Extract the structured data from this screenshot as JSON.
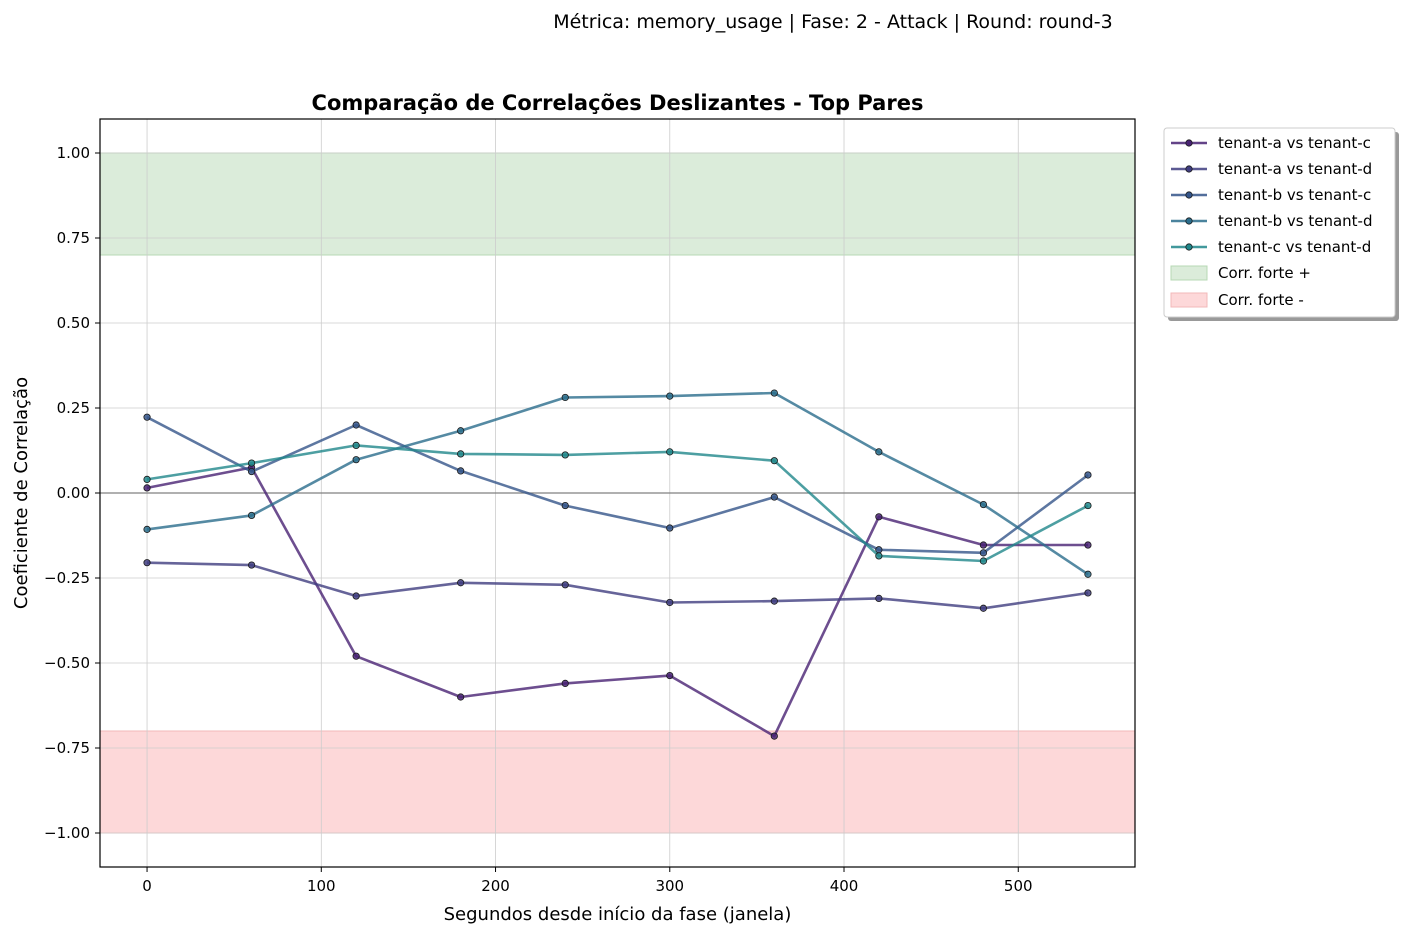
{
  "figure": {
    "suptitle": "Métrica: memory_usage | Fase: 2 - Attack | Round: round-3"
  },
  "chart_data": {
    "type": "line",
    "title": "Comparação de Correlações Deslizantes - Top Pares",
    "xlabel": "Segundos desde início da fase (janela)",
    "ylabel": "Coeficiente de Correlação",
    "xlim": [
      -27,
      567
    ],
    "ylim": [
      -1.1,
      1.1
    ],
    "x_ticks": [
      0,
      100,
      200,
      300,
      400,
      500
    ],
    "x_tick_labels": [
      "0",
      "100",
      "200",
      "300",
      "400",
      "500"
    ],
    "y_ticks": [
      1.0,
      0.75,
      0.5,
      0.25,
      0.0,
      -0.25,
      -0.5,
      -0.75,
      -1.0
    ],
    "y_tick_labels": [
      "1.00",
      "0.75",
      "0.50",
      "0.25",
      "0.00",
      "−0.25",
      "−0.50",
      "−0.75",
      "−1.00"
    ],
    "grid": true,
    "zero_line": 0,
    "legend_position": "outside top-right",
    "x": [
      0,
      60,
      120,
      180,
      240,
      300,
      360,
      420,
      480,
      540
    ],
    "series": [
      {
        "name": "tenant-a vs tenant-c",
        "color": "#482273",
        "values": [
          0.015,
          0.075,
          -0.48,
          -0.6,
          -0.56,
          -0.537,
          -0.715,
          -0.07,
          -0.153,
          -0.153
        ]
      },
      {
        "name": "tenant-a vs tenant-d",
        "color": "#403d80",
        "values": [
          -0.205,
          -0.212,
          -0.303,
          -0.264,
          -0.27,
          -0.322,
          -0.318,
          -0.31,
          -0.339,
          -0.294
        ]
      },
      {
        "name": "tenant-b vs tenant-c",
        "color": "#34558a",
        "values": [
          0.223,
          0.063,
          0.2,
          0.065,
          -0.037,
          -0.103,
          -0.012,
          -0.167,
          -0.176,
          0.053
        ]
      },
      {
        "name": "tenant-b vs tenant-d",
        "color": "#2a6d8c",
        "values": [
          -0.107,
          -0.066,
          0.098,
          0.183,
          0.281,
          0.285,
          0.294,
          0.121,
          -0.034,
          -0.239
        ]
      },
      {
        "name": "tenant-c vs tenant-d",
        "color": "#21878b",
        "values": [
          0.04,
          0.088,
          0.14,
          0.115,
          0.112,
          0.121,
          0.095,
          -0.185,
          -0.2,
          -0.037
        ]
      }
    ],
    "bands": [
      {
        "name": "Corr. forte +",
        "from": 0.7,
        "to": 1.0,
        "color": "#dbecda",
        "edge": "#b7d8b4"
      },
      {
        "name": "Corr. forte -",
        "from": -1.0,
        "to": -0.7,
        "color": "#fdd8d9",
        "edge": "#f2b8b9"
      }
    ]
  }
}
